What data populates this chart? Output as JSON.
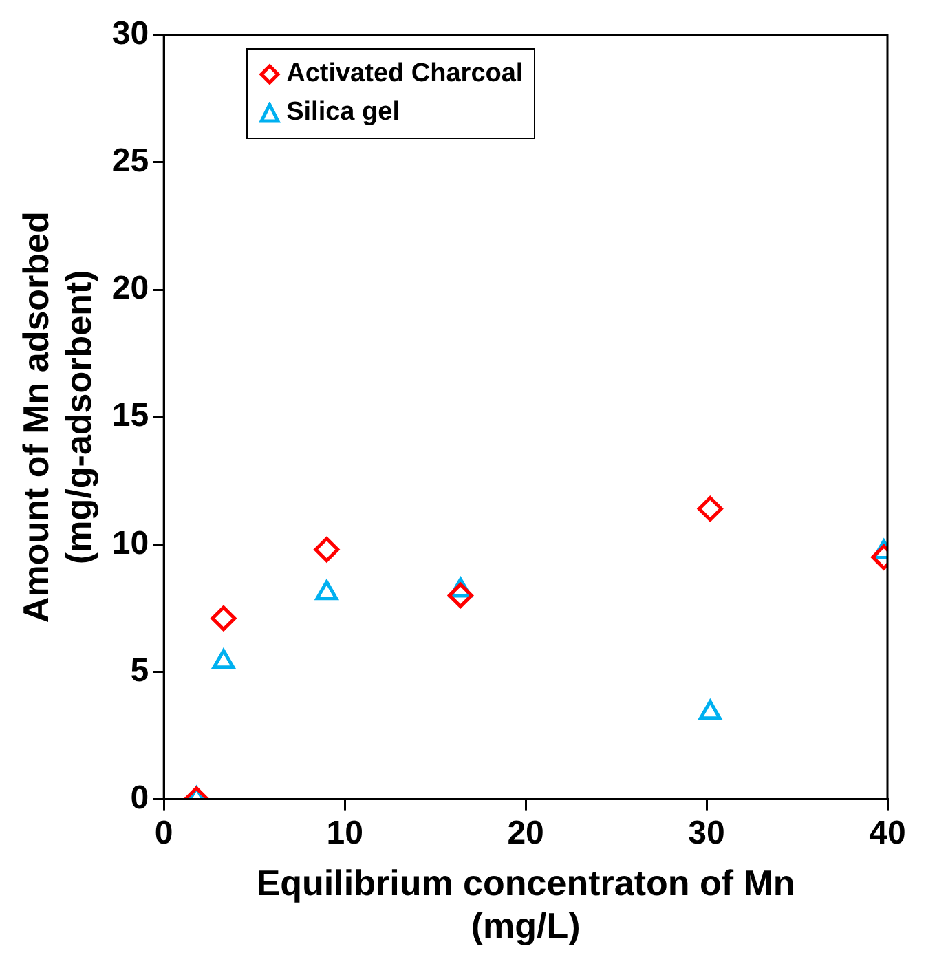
{
  "chart_data": {
    "type": "scatter",
    "xlabel": "Equilibrium concentraton of Mn\n(mg/L)",
    "ylabel": "Amount of Mn adsorbed\n(mg/g-adsorbent)",
    "xlim": [
      0,
      40
    ],
    "xticks": [
      0,
      10,
      20,
      30,
      40
    ],
    "ylim": [
      0,
      30
    ],
    "yticks": [
      0,
      5,
      10,
      15,
      20,
      25,
      30
    ],
    "grid": false,
    "legend": "top left",
    "series": [
      {
        "name": "Activated Charcoal",
        "color": "#ff0000",
        "marker": "diamond",
        "x": [
          1.8,
          3.3,
          9.0,
          16.4,
          30.2,
          39.8
        ],
        "values": [
          0,
          7.1,
          9.8,
          8.0,
          11.4,
          9.5
        ]
      },
      {
        "name": "Silica gel",
        "color": "#00b0f0",
        "marker": "triangle",
        "x": [
          1.8,
          3.3,
          9.0,
          16.4,
          30.2,
          39.8
        ],
        "values": [
          0,
          5.4,
          8.1,
          8.2,
          3.4,
          9.7
        ]
      }
    ]
  }
}
